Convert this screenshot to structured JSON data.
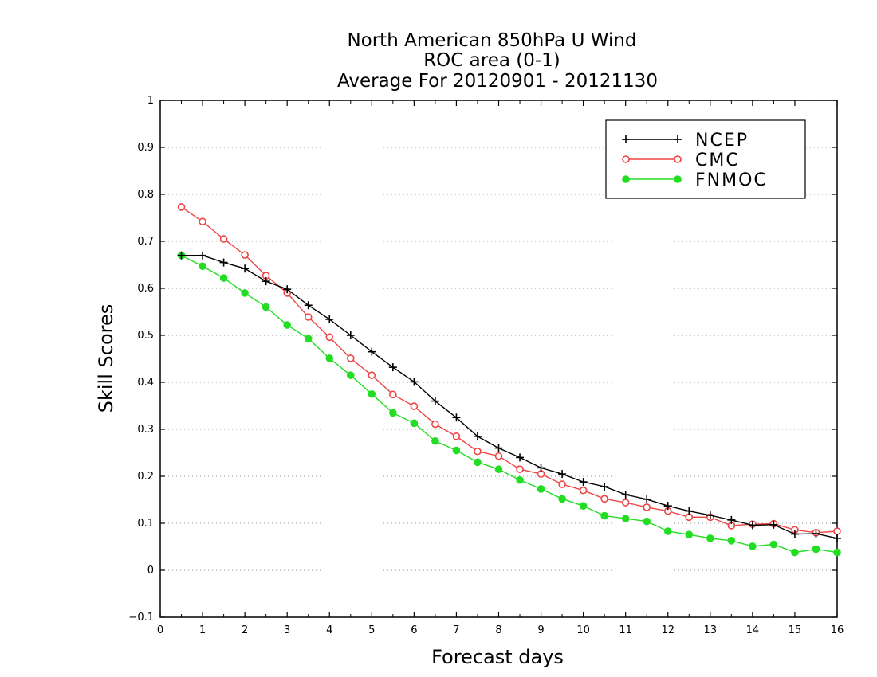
{
  "chart_data": {
    "type": "line",
    "title": [
      "North American 850hPa U Wind",
      "ROC area (0-1)",
      "Average For 20120901 - 20121130"
    ],
    "xlabel": "Forecast days",
    "ylabel": "Skill Scores",
    "xlim": [
      0,
      16
    ],
    "ylim": [
      -0.1,
      1
    ],
    "xticks": [
      "0",
      "1",
      "2",
      "3",
      "4",
      "5",
      "6",
      "7",
      "8",
      "9",
      "10",
      "11",
      "12",
      "13",
      "14",
      "15",
      "16"
    ],
    "yticks": [
      "−0.1",
      "0",
      "0.1",
      "0.2",
      "0.3",
      "0.4",
      "0.5",
      "0.6",
      "0.7",
      "0.8",
      "0.9",
      "1"
    ],
    "grid": true,
    "legend_position": "top-right",
    "x": [
      0.5,
      1,
      1.5,
      2,
      2.5,
      3,
      3.5,
      4,
      4.5,
      5,
      5.5,
      6,
      6.5,
      7,
      7.5,
      8,
      8.5,
      9,
      9.5,
      10,
      10.5,
      11,
      11.5,
      12,
      12.5,
      13,
      13.5,
      14,
      14.5,
      15,
      15.5,
      16
    ],
    "series": [
      {
        "name": "NCEP",
        "color": "#000000",
        "marker": "plus",
        "values": [
          0.67,
          0.67,
          0.655,
          0.642,
          0.615,
          0.598,
          0.564,
          0.534,
          0.5,
          0.465,
          0.432,
          0.401,
          0.36,
          0.325,
          0.285,
          0.26,
          0.24,
          0.218,
          0.205,
          0.188,
          0.178,
          0.161,
          0.151,
          0.137,
          0.126,
          0.117,
          0.107,
          0.096,
          0.097,
          0.077,
          0.078,
          0.068
        ]
      },
      {
        "name": "CMC",
        "color": "#ee4444",
        "marker": "open-circle",
        "values": [
          0.773,
          0.742,
          0.705,
          0.671,
          0.627,
          0.59,
          0.539,
          0.496,
          0.451,
          0.415,
          0.374,
          0.349,
          0.311,
          0.285,
          0.253,
          0.243,
          0.215,
          0.205,
          0.183,
          0.17,
          0.152,
          0.144,
          0.134,
          0.126,
          0.113,
          0.113,
          0.095,
          0.098,
          0.099,
          0.086,
          0.08,
          0.083
        ]
      },
      {
        "name": "FNMOC",
        "color": "#22dd22",
        "marker": "filled-circle",
        "values": [
          0.67,
          0.647,
          0.622,
          0.59,
          0.56,
          0.522,
          0.493,
          0.451,
          0.415,
          0.375,
          0.335,
          0.313,
          0.275,
          0.255,
          0.23,
          0.215,
          0.192,
          0.173,
          0.152,
          0.137,
          0.116,
          0.11,
          0.104,
          0.083,
          0.076,
          0.068,
          0.063,
          0.051,
          0.055,
          0.038,
          0.045,
          0.038
        ]
      }
    ]
  }
}
